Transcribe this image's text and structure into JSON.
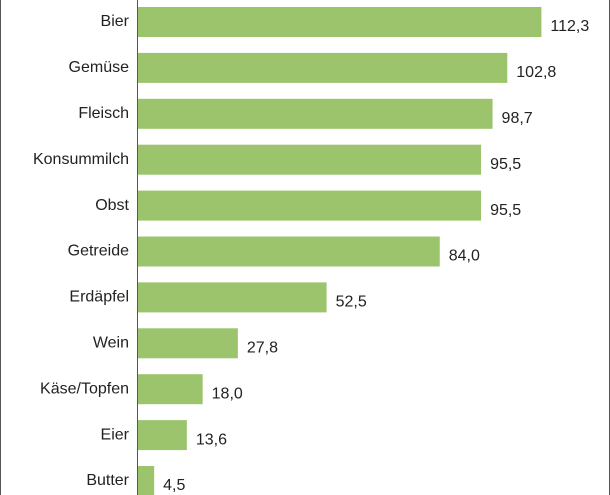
{
  "chart_data": {
    "type": "bar",
    "orientation": "horizontal",
    "categories": [
      "Bier",
      "Gemüse",
      "Fleisch",
      "Konsummilch",
      "Obst",
      "Getreide",
      "Erdäpfel",
      "Wein",
      "Käse/Topfen",
      "Eier",
      "Butter"
    ],
    "values": [
      112.3,
      102.8,
      98.7,
      95.5,
      95.5,
      84.0,
      52.5,
      27.8,
      18.0,
      13.6,
      4.5
    ],
    "value_labels": [
      "112,3",
      "102,8",
      "98,7",
      "95,5",
      "95,5",
      "84,0",
      "52,5",
      "27,8",
      "18,0",
      "13,6",
      "4,5"
    ],
    "color": "#9bc46c",
    "xlim": [
      0,
      130
    ]
  }
}
